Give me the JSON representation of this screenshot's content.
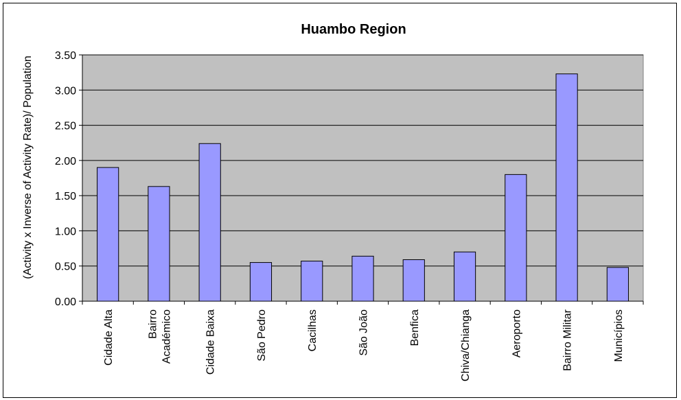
{
  "chart_data": {
    "type": "bar",
    "title": "Huambo Region",
    "xlabel": "",
    "ylabel": "(Activity x Inverse of Activity Rate)/ Population",
    "categories": [
      [
        "Cidade Alta"
      ],
      [
        "Bairro",
        "Académico"
      ],
      [
        "Cidade Baixa"
      ],
      [
        "São Pedro"
      ],
      [
        "Cacilhas"
      ],
      [
        "São João"
      ],
      [
        "Benfica"
      ],
      [
        "Chiva/Chianga"
      ],
      [
        "Aeroporto"
      ],
      [
        "Bairro Militar"
      ],
      [
        "Municípios"
      ]
    ],
    "values": [
      1.9,
      1.63,
      2.24,
      0.55,
      0.57,
      0.64,
      0.59,
      0.7,
      1.8,
      3.23,
      0.48
    ],
    "ylim": [
      0,
      3.5
    ],
    "yticks": [
      "0.00",
      "0.50",
      "1.00",
      "1.50",
      "2.00",
      "2.50",
      "3.00",
      "3.50"
    ],
    "grid": true,
    "colors": {
      "bar_fill": "#9999ff",
      "plot_background": "#c0c0c0",
      "gridline": "#000000"
    }
  }
}
